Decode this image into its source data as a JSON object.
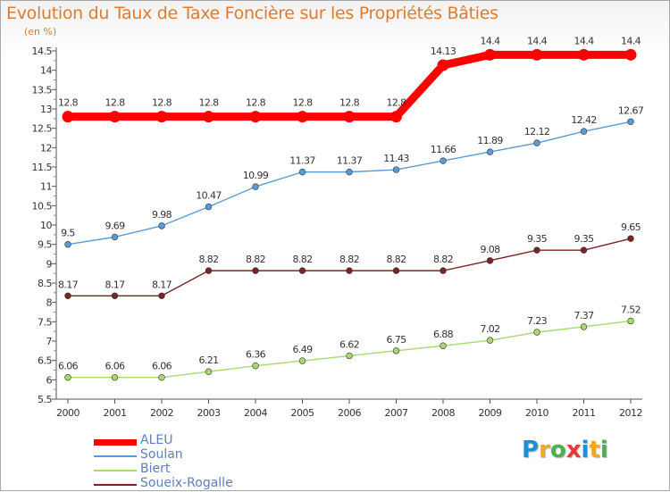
{
  "title": "Evolution du Taux de Taxe Foncière sur les Propriétés Bâties",
  "unit_label": "(en %)",
  "logo": {
    "letters": [
      "P",
      "r",
      "o",
      "x",
      "i",
      "t",
      "i"
    ],
    "colors": [
      "#1f8fd6",
      "#f5a623",
      "#4caf50",
      "#e53935",
      "#1f8fd6",
      "#f5a623",
      "#4caf50"
    ]
  },
  "chart_data": {
    "type": "line",
    "title": "Evolution du Taux de Taxe Foncière sur les Propriétés Bâties",
    "ylabel": "(en %)",
    "x": [
      "2000",
      "2001",
      "2002",
      "2003",
      "2004",
      "2005",
      "2006",
      "2007",
      "2008",
      "2009",
      "2010",
      "2011",
      "2012"
    ],
    "ylim": [
      5.5,
      14.5
    ],
    "yticks": [
      "5.5",
      "6",
      "6.5",
      "7",
      "7.5",
      "8",
      "8.5",
      "9",
      "9.5",
      "10",
      "10.5",
      "11",
      "11.5",
      "12",
      "12.5",
      "13",
      "13.5",
      "14",
      "14.5"
    ],
    "grid": false,
    "legend_position": "bottom-left",
    "series": [
      {
        "name": "ALEU",
        "color": "#ff0000",
        "values": [
          12.8,
          12.8,
          12.8,
          12.8,
          12.8,
          12.8,
          12.8,
          12.8,
          14.13,
          14.4,
          14.4,
          14.4,
          14.4
        ],
        "labels": [
          "12.8",
          "12.8",
          "12.8",
          "12.8",
          "12.8",
          "12.8",
          "12.8",
          "12.8",
          "14.13",
          "14.4",
          "14.4",
          "14.4",
          "14.4"
        ]
      },
      {
        "name": "Soulan",
        "color": "#5b9bd5",
        "values": [
          9.5,
          9.69,
          9.98,
          10.47,
          10.99,
          11.37,
          11.37,
          11.43,
          11.66,
          11.89,
          12.12,
          12.42,
          12.67
        ],
        "labels": [
          "9.5",
          "9.69",
          "9.98",
          "10.47",
          "10.99",
          "11.37",
          "11.37",
          "11.43",
          "11.66",
          "11.89",
          "12.12",
          "12.42",
          "12.67"
        ]
      },
      {
        "name": "Biert",
        "color": "#a8d86e",
        "values": [
          6.06,
          6.06,
          6.06,
          6.21,
          6.36,
          6.49,
          6.62,
          6.75,
          6.88,
          7.02,
          7.23,
          7.37,
          7.52
        ],
        "labels": [
          "6.06",
          "6.06",
          "6.06",
          "6.21",
          "6.36",
          "6.49",
          "6.62",
          "6.75",
          "6.88",
          "7.02",
          "7.23",
          "7.37",
          "7.52"
        ]
      },
      {
        "name": "Soueix-Rogalle",
        "color": "#7a2424",
        "values": [
          8.17,
          8.17,
          8.17,
          8.82,
          8.82,
          8.82,
          8.82,
          8.82,
          8.82,
          9.08,
          9.35,
          9.35,
          9.65
        ],
        "labels": [
          "8.17",
          "8.17",
          "8.17",
          "8.82",
          "8.82",
          "8.82",
          "8.82",
          "8.82",
          "8.82",
          "9.08",
          "9.35",
          "9.35",
          "9.65"
        ]
      }
    ]
  }
}
